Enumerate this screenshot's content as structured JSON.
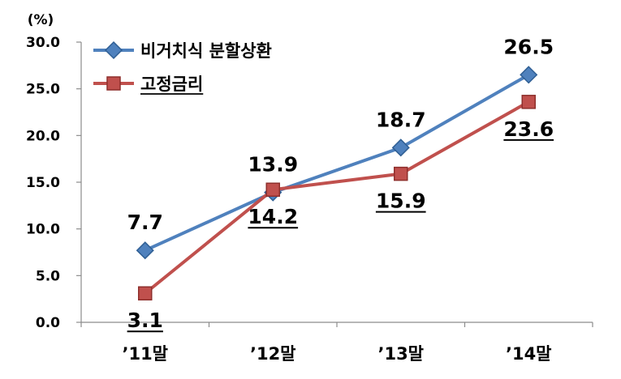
{
  "chart_data": {
    "type": "line",
    "unit_label": "(%)",
    "categories": [
      "’11말",
      "’12말",
      "’13말",
      "’14말"
    ],
    "ylim": [
      0,
      30
    ],
    "yticks": [
      "0.0",
      "5.0",
      "10.0",
      "15.0",
      "20.0",
      "25.0",
      "30.0"
    ],
    "legend_position": "top-left",
    "grid": false,
    "series": [
      {
        "name": "비거치식 분할상환",
        "values": [
          7.7,
          13.9,
          18.7,
          26.5
        ],
        "labels": [
          "7.7",
          "13.9",
          "18.7",
          "26.5"
        ],
        "color": "#4F81BD",
        "marker": "diamond",
        "label_position": "above",
        "underlined": false
      },
      {
        "name": "고정금리",
        "values": [
          3.1,
          14.2,
          15.9,
          23.6
        ],
        "labels": [
          "3.1",
          "14.2",
          "15.9",
          "23.6"
        ],
        "color": "#C0504D",
        "marker": "square",
        "label_position": "below",
        "underlined": true
      }
    ]
  }
}
